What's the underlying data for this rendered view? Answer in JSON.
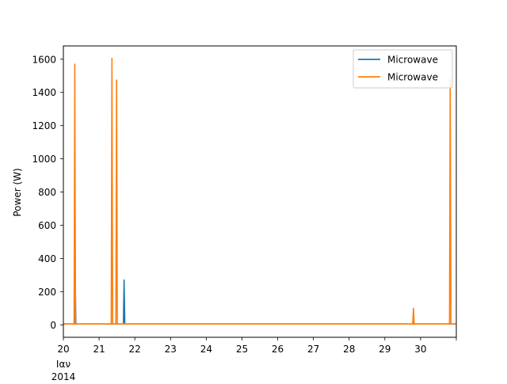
{
  "chart_data": {
    "type": "line",
    "title": "",
    "xlabel": "",
    "ylabel": "Power (W)",
    "x_tick_labels": [
      "20",
      "21",
      "22",
      "23",
      "24",
      "25",
      "26",
      "27",
      "28",
      "29",
      "30"
    ],
    "x_tick_values": [
      20,
      21,
      22,
      23,
      24,
      25,
      26,
      27,
      28,
      29,
      30
    ],
    "x_axis_sublabels": [
      "Ιαν",
      "2014"
    ],
    "xlim": [
      20,
      31
    ],
    "y_tick_labels": [
      "0",
      "200",
      "400",
      "600",
      "800",
      "1000",
      "1200",
      "1400",
      "1600"
    ],
    "y_tick_values": [
      0,
      200,
      400,
      600,
      800,
      1000,
      1200,
      1400,
      1600
    ],
    "ylim": [
      -75,
      1680
    ],
    "grid": false,
    "legend_position": "top-right",
    "series": [
      {
        "name": "Microwave",
        "color": "#1f77b4",
        "points": [
          [
            20,
            5
          ],
          [
            20.31,
            5
          ],
          [
            20.33,
            300
          ],
          [
            20.35,
            5
          ],
          [
            21.68,
            5
          ],
          [
            21.7,
            270
          ],
          [
            21.72,
            5
          ],
          [
            31,
            5
          ]
        ]
      },
      {
        "name": "Microwave",
        "color": "#ff7f0e",
        "points": [
          [
            20,
            5
          ],
          [
            20.3,
            5
          ],
          [
            20.32,
            1570
          ],
          [
            20.34,
            5
          ],
          [
            21.34,
            5
          ],
          [
            21.36,
            1605
          ],
          [
            21.38,
            5
          ],
          [
            21.47,
            5
          ],
          [
            21.49,
            1475
          ],
          [
            21.51,
            5
          ],
          [
            29.78,
            5
          ],
          [
            29.8,
            100
          ],
          [
            29.82,
            5
          ],
          [
            30.81,
            5
          ],
          [
            30.83,
            1480
          ],
          [
            30.85,
            5
          ],
          [
            31,
            5
          ]
        ]
      }
    ]
  }
}
